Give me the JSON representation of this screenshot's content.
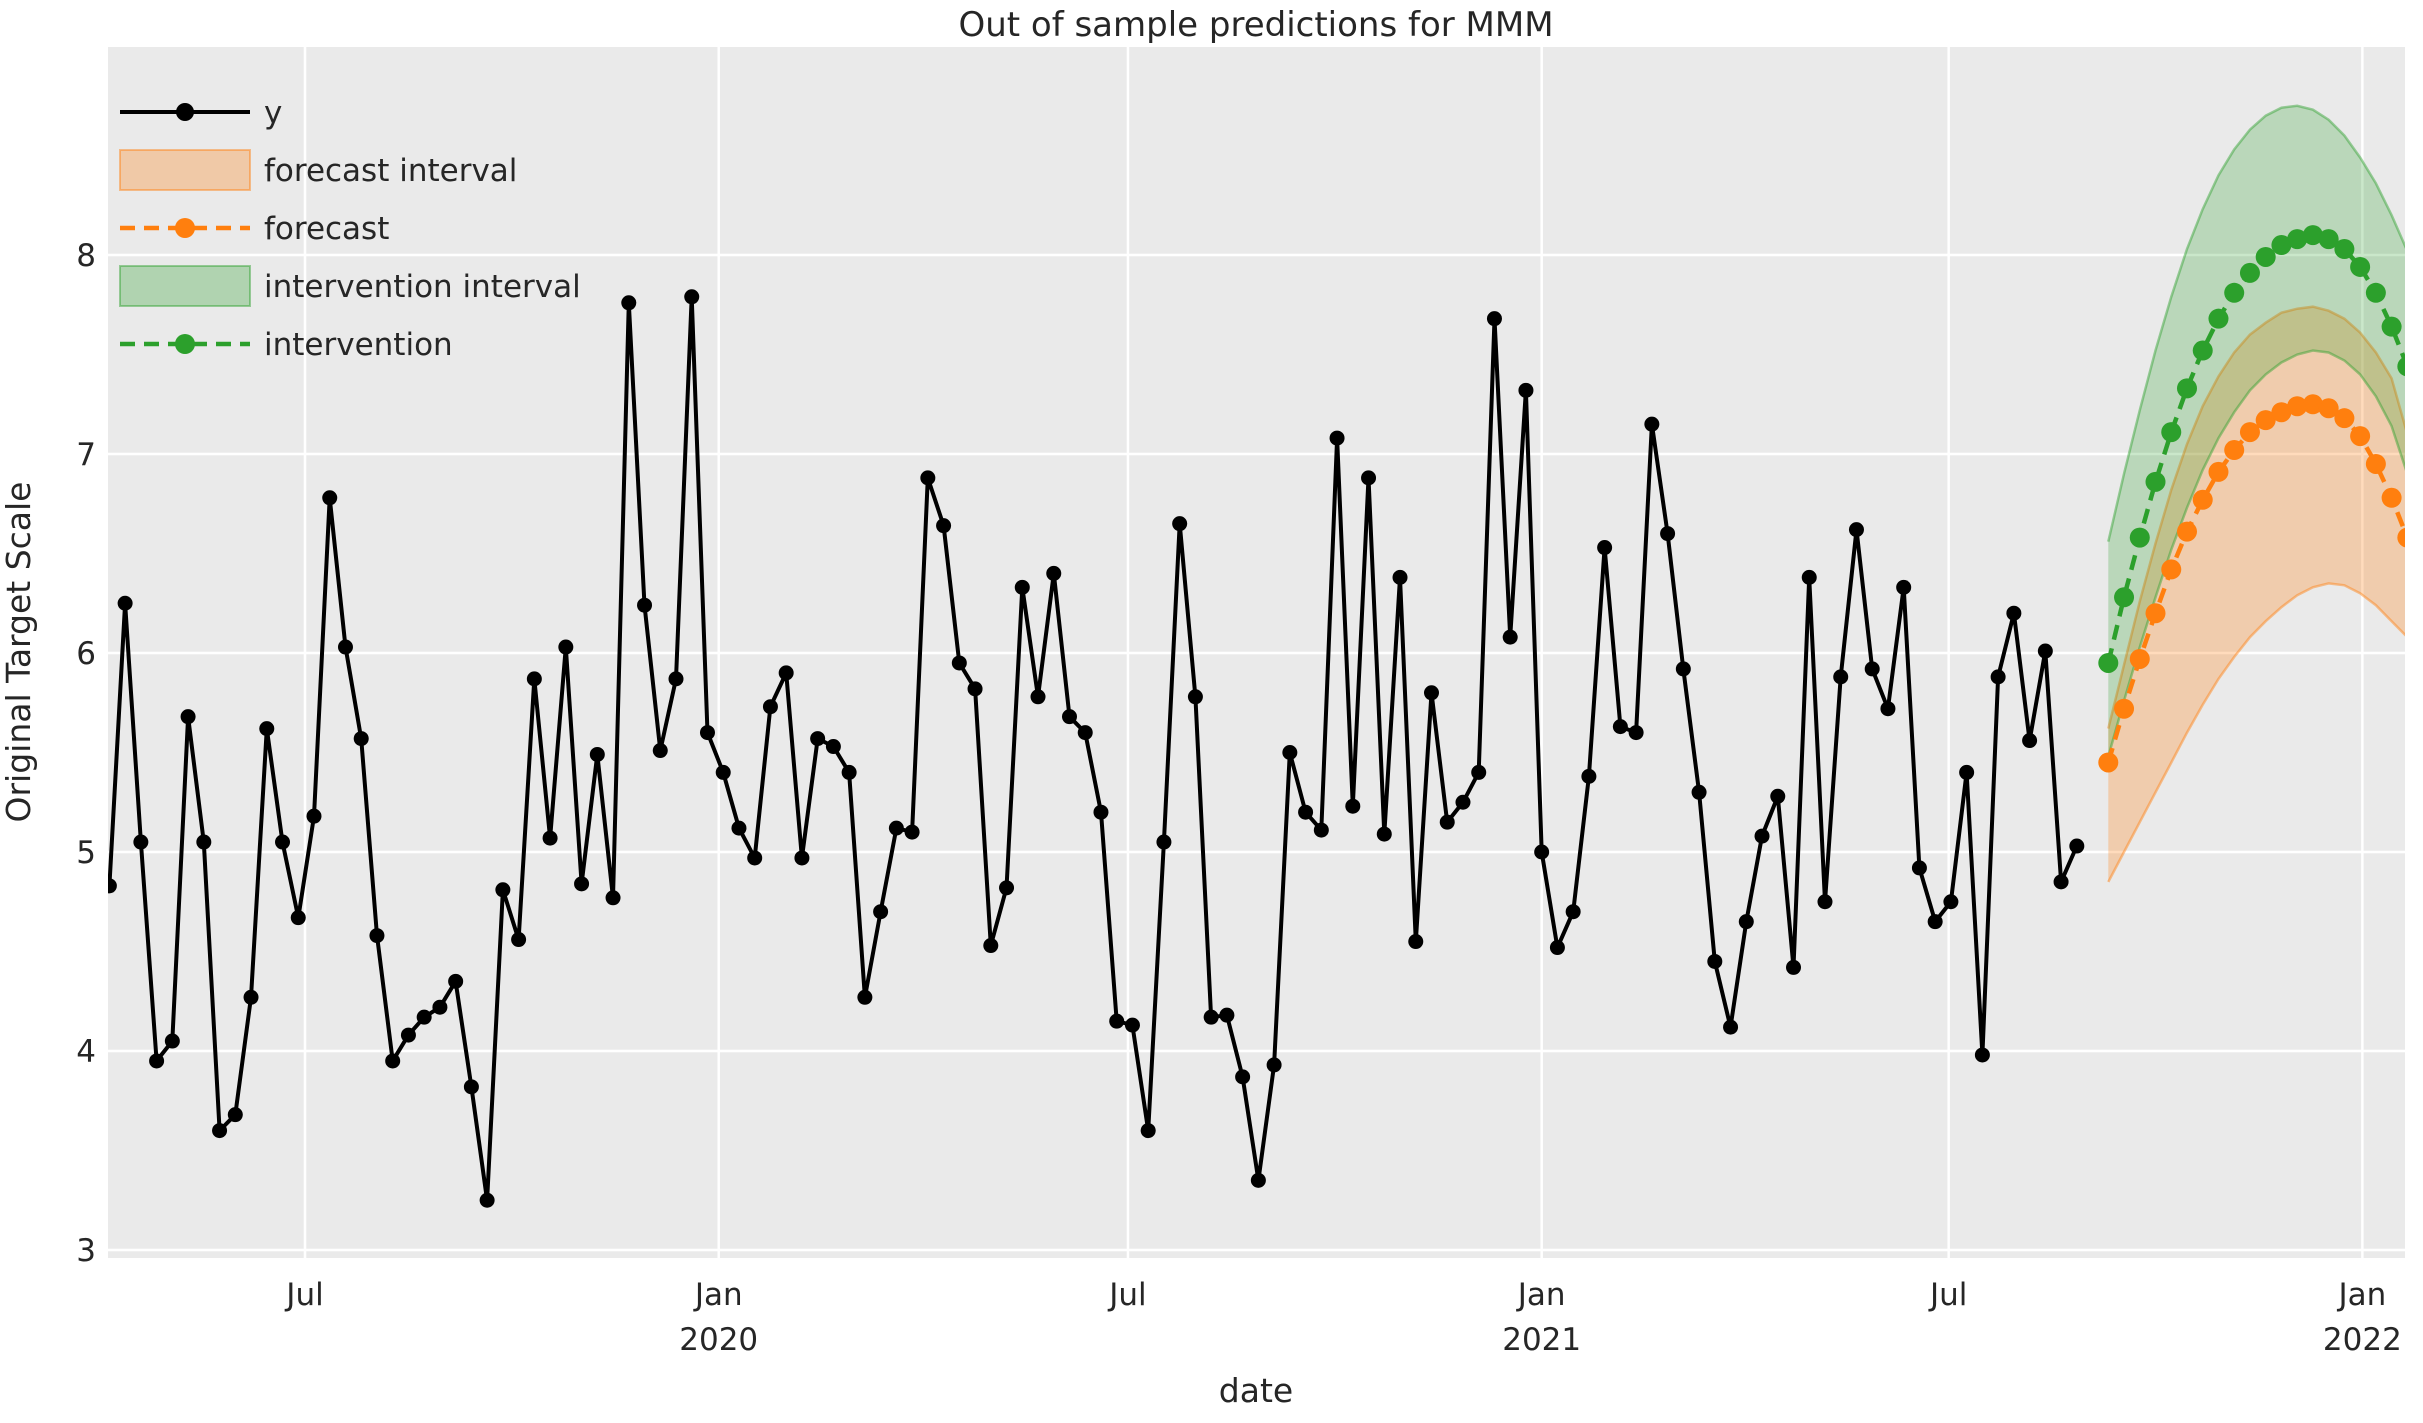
{
  "title": "Out of sample predictions for MMM",
  "axes": {
    "xlabel": "date",
    "ylabel": "Original Target Scale",
    "y_ticks": [
      "3",
      "4",
      "5",
      "6",
      "7",
      "8"
    ],
    "x_ticks": [
      {
        "label": "Jul",
        "year": "",
        "date": "2019-07-01"
      },
      {
        "label": "Jan",
        "year": "2020",
        "date": "2020-01-01"
      },
      {
        "label": "Jul",
        "year": "",
        "date": "2020-07-01"
      },
      {
        "label": "Jan",
        "year": "2021",
        "date": "2021-01-01"
      },
      {
        "label": "Jul",
        "year": "",
        "date": "2021-07-01"
      },
      {
        "label": "Jan",
        "year": "2022",
        "date": "2022-01-01"
      }
    ]
  },
  "legend": {
    "position": "upper left",
    "items": [
      {
        "label": "y",
        "type": "line",
        "color": "#000000"
      },
      {
        "label": "forecast interval",
        "type": "patch",
        "color": "#ff7f0e"
      },
      {
        "label": "forecast",
        "type": "dashed",
        "color": "#ff7f0e"
      },
      {
        "label": "intervention interval",
        "type": "patch",
        "color": "#2ca02c"
      },
      {
        "label": "intervention",
        "type": "dashed",
        "color": "#2ca02c"
      }
    ]
  },
  "colors": {
    "figure_bg": "#ffffff",
    "plot_bg": "#eaeaea",
    "grid": "#ffffff",
    "text": "#262626",
    "y_series": "#000000",
    "forecast": "#ff7f0e",
    "intervention": "#2ca02c"
  },
  "chart_data": {
    "type": "line",
    "title": "Out of sample predictions for MMM",
    "xlabel": "date",
    "ylabel": "Original Target Scale",
    "ylim": [
      3,
      8
    ],
    "x_range": [
      "2019-04-05",
      "2022-01-21"
    ],
    "grid": true,
    "legend_position": "upper left",
    "series": [
      {
        "name": "y",
        "color": "#000000",
        "marker": "o",
        "linestyle": "solid",
        "start_date": "2019-04-05",
        "freq_days": 7,
        "values": [
          4.83,
          6.25,
          5.05,
          3.95,
          4.05,
          5.68,
          5.05,
          3.6,
          3.68,
          4.27,
          5.62,
          5.05,
          4.67,
          5.18,
          6.78,
          6.03,
          5.57,
          4.58,
          3.95,
          4.08,
          4.17,
          4.22,
          4.35,
          3.82,
          3.25,
          4.81,
          4.56,
          5.87,
          5.07,
          6.03,
          4.84,
          5.49,
          4.77,
          7.76,
          6.24,
          5.51,
          5.87,
          7.79,
          5.6,
          5.4,
          5.12,
          4.97,
          5.73,
          5.9,
          4.97,
          5.57,
          5.53,
          5.4,
          4.27,
          4.7,
          5.12,
          5.1,
          6.88,
          6.64,
          5.95,
          5.82,
          4.53,
          4.82,
          6.33,
          5.78,
          6.4,
          5.68,
          5.6,
          5.2,
          4.15,
          4.13,
          3.6,
          5.05,
          6.65,
          5.78,
          4.17,
          4.18,
          3.87,
          3.35,
          3.93,
          5.5,
          5.2,
          5.11,
          7.08,
          5.23,
          6.88,
          5.09,
          6.38,
          4.55,
          5.8,
          5.15,
          5.25,
          5.4,
          7.68,
          6.08,
          7.32,
          5.0,
          4.52,
          4.7,
          5.38,
          6.53,
          5.63,
          5.6,
          7.15,
          6.6,
          5.92,
          5.3,
          4.45,
          4.12,
          4.65,
          5.08,
          5.28,
          4.42,
          6.38,
          4.75,
          5.88,
          6.62,
          5.92,
          5.72,
          6.33,
          4.92,
          4.65,
          4.75,
          5.4,
          3.98,
          5.88,
          6.2,
          5.56,
          6.01,
          4.85,
          5.03
        ]
      },
      {
        "name": "forecast",
        "interval_label": "forecast interval",
        "color": "#ff7f0e",
        "marker": "o",
        "linestyle": "dashed",
        "start_date": "2021-09-10",
        "freq_days": 7,
        "values": [
          5.45,
          5.72,
          5.97,
          6.2,
          6.42,
          6.61,
          6.77,
          6.91,
          7.02,
          7.11,
          7.17,
          7.21,
          7.24,
          7.25,
          7.23,
          7.18,
          7.09,
          6.95,
          6.78,
          6.58
        ],
        "lower": [
          4.85,
          5.0,
          5.15,
          5.3,
          5.45,
          5.6,
          5.74,
          5.87,
          5.98,
          6.08,
          6.16,
          6.23,
          6.29,
          6.33,
          6.35,
          6.34,
          6.3,
          6.24,
          6.16,
          6.08
        ],
        "upper": [
          5.62,
          5.94,
          6.26,
          6.55,
          6.82,
          7.05,
          7.24,
          7.39,
          7.51,
          7.6,
          7.66,
          7.71,
          7.73,
          7.74,
          7.72,
          7.68,
          7.61,
          7.51,
          7.38,
          7.1
        ]
      },
      {
        "name": "intervention",
        "interval_label": "intervention interval",
        "color": "#2ca02c",
        "marker": "o",
        "linestyle": "dashed",
        "start_date": "2021-09-10",
        "freq_days": 7,
        "values": [
          5.95,
          6.28,
          6.58,
          6.86,
          7.11,
          7.33,
          7.52,
          7.68,
          7.81,
          7.91,
          7.99,
          8.05,
          8.08,
          8.1,
          8.08,
          8.03,
          7.94,
          7.81,
          7.64,
          7.44
        ],
        "lower": [
          5.48,
          5.76,
          6.03,
          6.28,
          6.52,
          6.73,
          6.92,
          7.08,
          7.21,
          7.32,
          7.4,
          7.46,
          7.5,
          7.52,
          7.51,
          7.47,
          7.4,
          7.29,
          7.14,
          6.9
        ],
        "upper": [
          6.56,
          6.9,
          7.22,
          7.52,
          7.79,
          8.03,
          8.23,
          8.4,
          8.53,
          8.63,
          8.7,
          8.74,
          8.75,
          8.73,
          8.68,
          8.6,
          8.49,
          8.36,
          8.2,
          8.02
        ]
      }
    ]
  }
}
